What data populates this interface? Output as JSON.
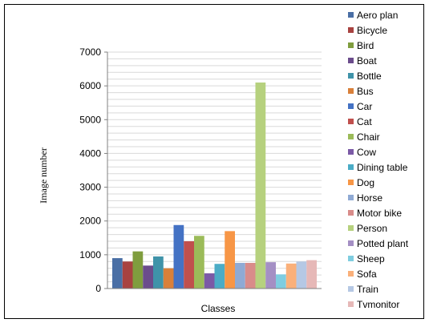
{
  "chart_data": {
    "type": "bar",
    "title": "",
    "xlabel": "Classes",
    "ylabel": "Image number",
    "ylim": [
      0,
      7000
    ],
    "yticks": [
      0,
      1000,
      2000,
      3000,
      4000,
      5000,
      6000,
      7000
    ],
    "grid": true,
    "legend_position": "right",
    "series": [
      {
        "name": "Aero plan",
        "value": 900,
        "color": "#4a6fa5"
      },
      {
        "name": "Bicycle",
        "value": 800,
        "color": "#a84240"
      },
      {
        "name": "Bird",
        "value": 1100,
        "color": "#7f9d3e"
      },
      {
        "name": "Boat",
        "value": 680,
        "color": "#6b4c8c"
      },
      {
        "name": "Bottle",
        "value": 950,
        "color": "#3f93a9"
      },
      {
        "name": "Bus",
        "value": 600,
        "color": "#d9803a"
      },
      {
        "name": "Car",
        "value": 1880,
        "color": "#4472c4"
      },
      {
        "name": "Cat",
        "value": 1400,
        "color": "#c0504d"
      },
      {
        "name": "Chair",
        "value": 1560,
        "color": "#9bbb59"
      },
      {
        "name": "Cow",
        "value": 450,
        "color": "#7b5aa6"
      },
      {
        "name": "Dining table",
        "value": 730,
        "color": "#4bacc6"
      },
      {
        "name": "Dog",
        "value": 1700,
        "color": "#f79646"
      },
      {
        "name": "Horse",
        "value": 760,
        "color": "#8faad4"
      },
      {
        "name": "Motor bike",
        "value": 760,
        "color": "#d98c8a"
      },
      {
        "name": "Person",
        "value": 6100,
        "color": "#b6d17e"
      },
      {
        "name": "Potted plant",
        "value": 780,
        "color": "#a48fc4"
      },
      {
        "name": "Sheep",
        "value": 420,
        "color": "#7fcde0"
      },
      {
        "name": "Sofa",
        "value": 740,
        "color": "#fab07a"
      },
      {
        "name": "Train",
        "value": 800,
        "color": "#b5c8e4"
      },
      {
        "name": "Tvmonitor",
        "value": 840,
        "color": "#e6b8b7"
      }
    ]
  }
}
